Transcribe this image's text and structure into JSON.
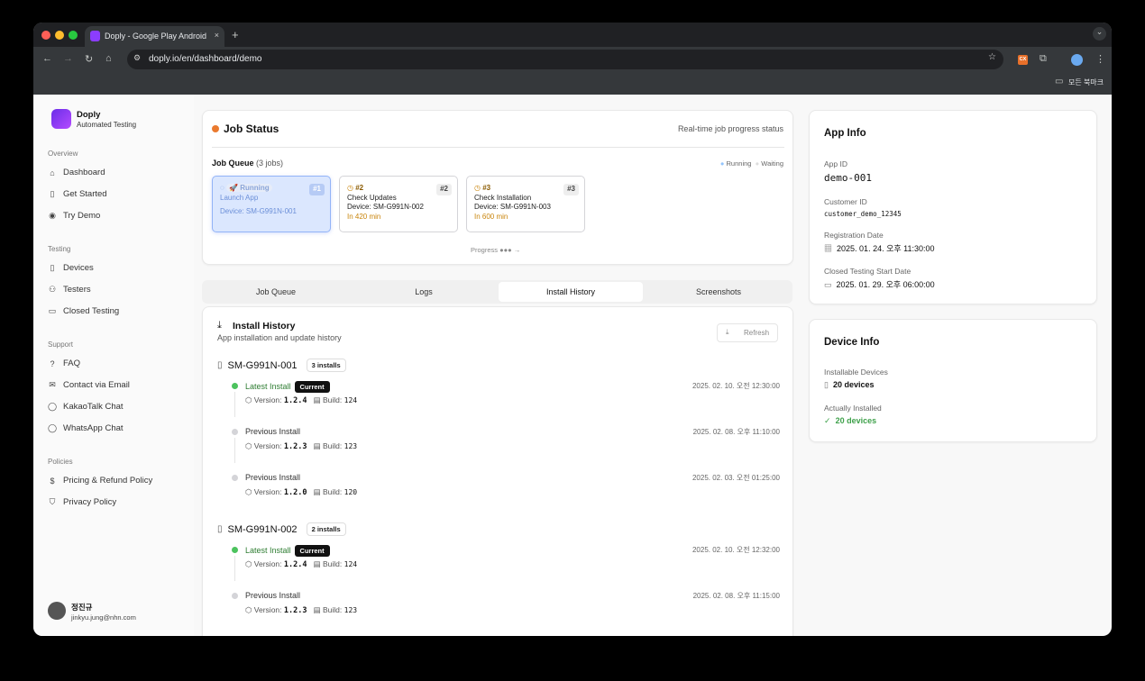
{
  "browser": {
    "tab_title": "Doply - Google Play Android",
    "url": "doply.io/en/dashboard/demo",
    "bookmarks_label": "모든 북마크",
    "extension_label": "CX"
  },
  "brand": {
    "name": "Doply",
    "subtitle": "Automated Testing",
    "accent": "#8b3dff"
  },
  "sidebar": {
    "sections": [
      {
        "title": "Overview",
        "items": [
          {
            "label": "Dashboard",
            "icon": "home-icon"
          },
          {
            "label": "Get Started",
            "icon": "book-icon"
          },
          {
            "label": "Try Demo",
            "icon": "eye-icon"
          }
        ]
      },
      {
        "title": "Testing",
        "items": [
          {
            "label": "Devices",
            "icon": "phone-icon"
          },
          {
            "label": "Testers",
            "icon": "users-icon"
          },
          {
            "label": "Closed Testing",
            "icon": "monitor-icon"
          }
        ]
      },
      {
        "title": "Support",
        "items": [
          {
            "label": "FAQ",
            "icon": "help-icon"
          },
          {
            "label": "Contact via Email",
            "icon": "mail-icon"
          },
          {
            "label": "KakaoTalk Chat",
            "icon": "chat-icon"
          },
          {
            "label": "WhatsApp Chat",
            "icon": "chat-icon"
          }
        ]
      },
      {
        "title": "Policies",
        "items": [
          {
            "label": "Pricing & Refund Policy",
            "icon": "dollar-icon"
          },
          {
            "label": "Privacy Policy",
            "icon": "shield-icon"
          }
        ]
      }
    ],
    "user": {
      "name": "정진규",
      "email": "jinkyu.jung@nhn.com"
    }
  },
  "job_status": {
    "title": "Job Status",
    "subtitle": "Real-time job progress status",
    "queue_label": "Job Queue",
    "queue_count": "(3 jobs)",
    "legend_running": "Running",
    "legend_waiting": "Waiting",
    "progress_label": "Progress",
    "jobs": [
      {
        "status": "Running",
        "num": "#1",
        "name": "Launch App",
        "device": "Device: SM-G991N-001",
        "eta": ""
      },
      {
        "status": "#2",
        "num": "#2",
        "name": "Check Updates",
        "device": "Device: SM-G991N-002",
        "eta": "In 420 min"
      },
      {
        "status": "#3",
        "num": "#3",
        "name": "Check Installation",
        "device": "Device: SM-G991N-003",
        "eta": "In 600 min"
      }
    ]
  },
  "tabs": [
    {
      "label": "Job Queue"
    },
    {
      "label": "Logs"
    },
    {
      "label": "Install History",
      "active": true
    },
    {
      "label": "Screenshots"
    }
  ],
  "install_history": {
    "title": "Install History",
    "subtitle": "App installation and update history",
    "refresh_label": "Refresh",
    "version_label": "Version:",
    "build_label": "Build:",
    "current_label": "Current",
    "devices": [
      {
        "name": "SM-G991N-001",
        "count": "3 installs",
        "entries": [
          {
            "type": "Latest Install",
            "latest": true,
            "date": "2025. 02. 10. 오전 12:30:00",
            "version": "1.2.4",
            "build": "124"
          },
          {
            "type": "Previous Install",
            "date": "2025. 02. 08. 오후 11:10:00",
            "version": "1.2.3",
            "build": "123"
          },
          {
            "type": "Previous Install",
            "date": "2025. 02. 03. 오전 01:25:00",
            "version": "1.2.0",
            "build": "120"
          }
        ]
      },
      {
        "name": "SM-G991N-002",
        "count": "2 installs",
        "entries": [
          {
            "type": "Latest Install",
            "latest": true,
            "date": "2025. 02. 10. 오전 12:32:00",
            "version": "1.2.4",
            "build": "124"
          },
          {
            "type": "Previous Install",
            "date": "2025. 02. 08. 오후 11:15:00",
            "version": "1.2.3",
            "build": "123"
          }
        ]
      }
    ]
  },
  "app_info": {
    "title": "App Info",
    "app_id_label": "App ID",
    "app_id": "demo-001",
    "customer_id_label": "Customer ID",
    "customer_id": "customer_demo_12345",
    "registration_label": "Registration Date",
    "registration_date": "2025. 01. 24. 오후 11:30:00",
    "closed_label": "Closed Testing Start Date",
    "closed_date": "2025. 01. 29. 오후 06:00:00"
  },
  "device_info": {
    "title": "Device Info",
    "installable_label": "Installable Devices",
    "installable": "20 devices",
    "installed_label": "Actually Installed",
    "installed": "20 devices"
  }
}
